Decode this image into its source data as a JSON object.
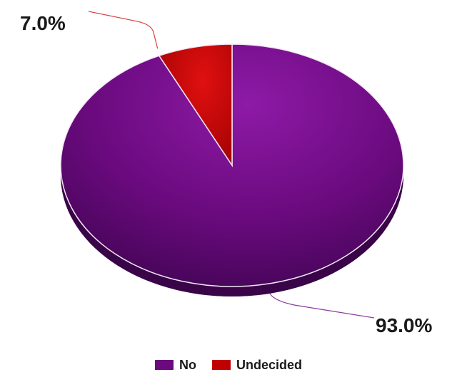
{
  "chart_data": {
    "type": "pie",
    "title": "",
    "slices": [
      {
        "label": "No",
        "value": 93.0,
        "display": "93.0%",
        "color": "#6a0a7e"
      },
      {
        "label": "Undecided",
        "value": 7.0,
        "display": "7.0%",
        "color": "#c00000"
      }
    ],
    "legend_position": "bottom",
    "start_angle_deg": 0,
    "style": "3d-tilted"
  }
}
